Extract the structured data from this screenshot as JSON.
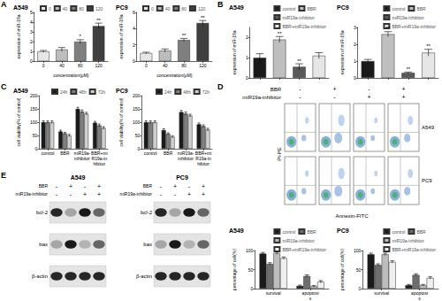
{
  "panel_labels": [
    "A",
    "B",
    "C",
    "D",
    "E"
  ],
  "chart_data": [
    {
      "type": "bar",
      "title": "A549",
      "x_label": "concentration(μM)",
      "y_label": "expression of miR-19a",
      "categories": [
        "0",
        "40",
        "80",
        "120"
      ],
      "stacked": true,
      "legend": "upper left",
      "grid": false,
      "ylim": [
        0,
        5
      ],
      "yticks": [
        0,
        1,
        2,
        3,
        4,
        5
      ],
      "series": [
        {
          "name": "0",
          "color": "#e6e6e6",
          "values": [
            1.0,
            null,
            null,
            null
          ],
          "errors": [
            0.1,
            null,
            null,
            null
          ]
        },
        {
          "name": "40",
          "color": "#bdbdbd",
          "values": [
            null,
            1.2,
            null,
            null
          ],
          "errors": [
            null,
            0.2,
            null,
            null
          ]
        },
        {
          "name": "80",
          "color": "#7f7f7f",
          "values": [
            null,
            null,
            2.0,
            null
          ],
          "errors": [
            null,
            null,
            0.2,
            null
          ],
          "significance": [
            null,
            null,
            "*",
            null
          ]
        },
        {
          "name": "120",
          "color": "#3f3f3f",
          "values": [
            null,
            null,
            null,
            3.6
          ],
          "errors": [
            null,
            null,
            null,
            0.3
          ],
          "significance": [
            null,
            null,
            null,
            "**"
          ]
        }
      ]
    },
    {
      "type": "bar",
      "title": "PC9",
      "x_label": "concentration(μM)",
      "y_label": "expression of miR-19a",
      "categories": [
        "0",
        "40",
        "80",
        "120"
      ],
      "stacked": true,
      "legend": "upper left",
      "grid": false,
      "ylim": [
        0,
        6
      ],
      "yticks": [
        0,
        2,
        4,
        6
      ],
      "series": [
        {
          "name": "0",
          "color": "#e6e6e6",
          "values": [
            1.0,
            null,
            null,
            null
          ],
          "errors": [
            0.1,
            null,
            null,
            null
          ]
        },
        {
          "name": "40",
          "color": "#bdbdbd",
          "values": [
            null,
            1.3,
            null,
            null
          ],
          "errors": [
            null,
            0.2,
            null,
            null
          ]
        },
        {
          "name": "80",
          "color": "#7f7f7f",
          "values": [
            null,
            null,
            2.6,
            null
          ],
          "errors": [
            null,
            null,
            0.2,
            null
          ],
          "significance": [
            null,
            null,
            "**",
            null
          ]
        },
        {
          "name": "120",
          "color": "#3f3f3f",
          "values": [
            null,
            null,
            null,
            4.7
          ],
          "errors": [
            null,
            null,
            null,
            0.3
          ],
          "significance": [
            null,
            null,
            null,
            "**"
          ]
        }
      ]
    },
    {
      "type": "bar",
      "title": "A549",
      "y_label": "expression of miR-19a",
      "categories": [
        null,
        null,
        null,
        null
      ],
      "stacked": true,
      "legend": "upper right",
      "grid": false,
      "ylim": [
        0,
        2.5
      ],
      "yticks": [
        0,
        1,
        2
      ],
      "series": [
        {
          "name": "control",
          "color": "#1a1a1a",
          "values": [
            1.0,
            null,
            null,
            null
          ],
          "errors": [
            0.2,
            null,
            null,
            null
          ]
        },
        {
          "name": "BBR",
          "color": "#bfbfbf",
          "values": [
            null,
            1.9,
            null,
            null
          ],
          "errors": [
            null,
            0.15,
            null,
            null
          ],
          "significance": [
            null,
            "**",
            null,
            null
          ]
        },
        {
          "name": "miR19a-inhibitor",
          "color": "#595959",
          "values": [
            null,
            null,
            0.55,
            null
          ],
          "errors": [
            null,
            null,
            0.15,
            null
          ],
          "significance": [
            null,
            null,
            "**",
            null
          ]
        },
        {
          "name": "BBR+miR19a-inhibitor",
          "color": "#e6e6e6",
          "values": [
            null,
            null,
            null,
            1.1
          ],
          "errors": [
            null,
            null,
            null,
            0.15
          ]
        }
      ]
    },
    {
      "type": "bar",
      "title": "PC9",
      "y_label": "expression of miR-19a",
      "categories": [
        null,
        null,
        null,
        null
      ],
      "stacked": true,
      "legend": "upper right",
      "grid": false,
      "ylim": [
        0,
        3
      ],
      "yticks": [
        0,
        1,
        2,
        3
      ],
      "series": [
        {
          "name": "control",
          "color": "#1a1a1a",
          "values": [
            1.0,
            null,
            null,
            null
          ],
          "errors": [
            0.1,
            null,
            null,
            null
          ]
        },
        {
          "name": "BBR",
          "color": "#bfbfbf",
          "values": [
            null,
            2.6,
            null,
            null
          ],
          "errors": [
            null,
            0.15,
            null,
            null
          ],
          "significance": [
            null,
            "**",
            null,
            null
          ]
        },
        {
          "name": "miR19a-inhibitor",
          "color": "#595959",
          "values": [
            null,
            null,
            0.3,
            null
          ],
          "errors": [
            null,
            null,
            0.05,
            null
          ],
          "significance": [
            null,
            null,
            "**",
            null
          ]
        },
        {
          "name": "BBR+miR19a-inhibitor",
          "color": "#e6e6e6",
          "values": [
            null,
            null,
            null,
            1.5
          ],
          "errors": [
            null,
            null,
            null,
            0.2
          ],
          "significance": [
            null,
            null,
            null,
            "**"
          ]
        }
      ]
    },
    {
      "type": "bar",
      "title": "A549",
      "y_label": "cell viability(% of control)",
      "categories": [
        "control",
        "BBR",
        "miR19a-inhibitor",
        "BBR+miR19a-inhibitor"
      ],
      "legend": "upper right",
      "grid": false,
      "ylim": [
        0,
        200
      ],
      "yticks": [
        0,
        50,
        100,
        150,
        200
      ],
      "series": [
        {
          "name": "24h",
          "color": "#1a1a1a",
          "values": [
            100,
            65,
            150,
            98
          ],
          "errors": [
            5,
            5,
            6,
            5
          ]
        },
        {
          "name": "48h",
          "color": "#7f7f7f",
          "values": [
            100,
            58,
            140,
            88
          ],
          "errors": [
            5,
            4,
            6,
            5
          ]
        },
        {
          "name": "72h",
          "color": "#d0d0d0",
          "values": [
            100,
            50,
            132,
            78
          ],
          "errors": [
            5,
            4,
            5,
            5
          ]
        }
      ]
    },
    {
      "type": "bar",
      "title": "PC9",
      "y_label": "cell viability(% of control)",
      "categories": [
        "control",
        "BBR",
        "miR19a-inhibitor",
        "BBR+miR19a-inhibitor"
      ],
      "legend": "upper right",
      "grid": false,
      "ylim": [
        0,
        200
      ],
      "yticks": [
        0,
        50,
        100,
        150,
        200
      ],
      "series": [
        {
          "name": "24h",
          "color": "#1a1a1a",
          "values": [
            100,
            70,
            138,
            92
          ],
          "errors": [
            5,
            5,
            6,
            5
          ]
        },
        {
          "name": "48h",
          "color": "#7f7f7f",
          "values": [
            100,
            56,
            132,
            85
          ],
          "errors": [
            5,
            4,
            6,
            5
          ]
        },
        {
          "name": "72h",
          "color": "#d0d0d0",
          "values": [
            100,
            45,
            125,
            72
          ],
          "errors": [
            5,
            4,
            5,
            5
          ]
        }
      ]
    },
    {
      "type": "bar",
      "title": "A549",
      "y_label": "percentage of cell(%)",
      "categories": [
        "survival",
        "apoptosis"
      ],
      "legend": "upper right",
      "grid": false,
      "ylim": [
        0,
        100
      ],
      "yticks": [
        0,
        50,
        100
      ],
      "series": [
        {
          "name": "control",
          "color": "#1a1a1a",
          "values": [
            92,
            7
          ],
          "errors": [
            3,
            2
          ]
        },
        {
          "name": "BBR",
          "color": "#6e6e6e",
          "values": [
            65,
            33
          ],
          "errors": [
            3,
            3
          ]
        },
        {
          "name": "miR19a-inhibitor",
          "color": "#bdbdbd",
          "values": [
            93,
            6
          ],
          "errors": [
            3,
            2
          ]
        },
        {
          "name": "BBR+miR19a-inhibitor",
          "color": "#efefef",
          "values": [
            80,
            18
          ],
          "errors": [
            3,
            3
          ]
        }
      ]
    },
    {
      "type": "bar",
      "title": "PC9",
      "y_label": "percentage of cell(%)",
      "categories": [
        "survival",
        "apoptosis"
      ],
      "legend": "upper right",
      "grid": false,
      "ylim": [
        0,
        100
      ],
      "yticks": [
        0,
        50,
        100
      ],
      "series": [
        {
          "name": "control",
          "color": "#1a1a1a",
          "values": [
            90,
            9
          ],
          "errors": [
            3,
            2
          ]
        },
        {
          "name": "BBR",
          "color": "#6e6e6e",
          "values": [
            62,
            36
          ],
          "errors": [
            3,
            3
          ]
        },
        {
          "name": "miR19a-inhibitor",
          "color": "#bdbdbd",
          "values": [
            90,
            9
          ],
          "errors": [
            3,
            2
          ]
        },
        {
          "name": "BBR+miR19a-inhibitor",
          "color": "#efefef",
          "values": [
            70,
            28
          ],
          "errors": [
            3,
            3
          ]
        }
      ]
    }
  ],
  "flow_cytometry": {
    "conditions": [
      {
        "name": "BBR",
        "marks": [
          "-",
          "+",
          "-",
          "+"
        ]
      },
      {
        "name": "miR19a-inhibitor",
        "marks": [
          "-",
          "-",
          "+",
          "+"
        ]
      }
    ],
    "rows": [
      "A549",
      "PC9"
    ],
    "x_label": "Annexin-FITC",
    "y_label": "PI-PE"
  },
  "western_blot": {
    "conditions": [
      {
        "name": "BBR",
        "marks": [
          "-",
          "+",
          "-",
          "+"
        ]
      },
      {
        "name": "miR19a-inhibitor",
        "marks": [
          "-",
          "-",
          "+",
          "+"
        ]
      }
    ],
    "blots": [
      {
        "cell": "A549",
        "bands": [
          "bcl-2",
          "bax",
          "β-actin"
        ]
      },
      {
        "cell": "PC9",
        "bands": [
          "bcl-2",
          "bax",
          "β-actin"
        ]
      }
    ]
  }
}
